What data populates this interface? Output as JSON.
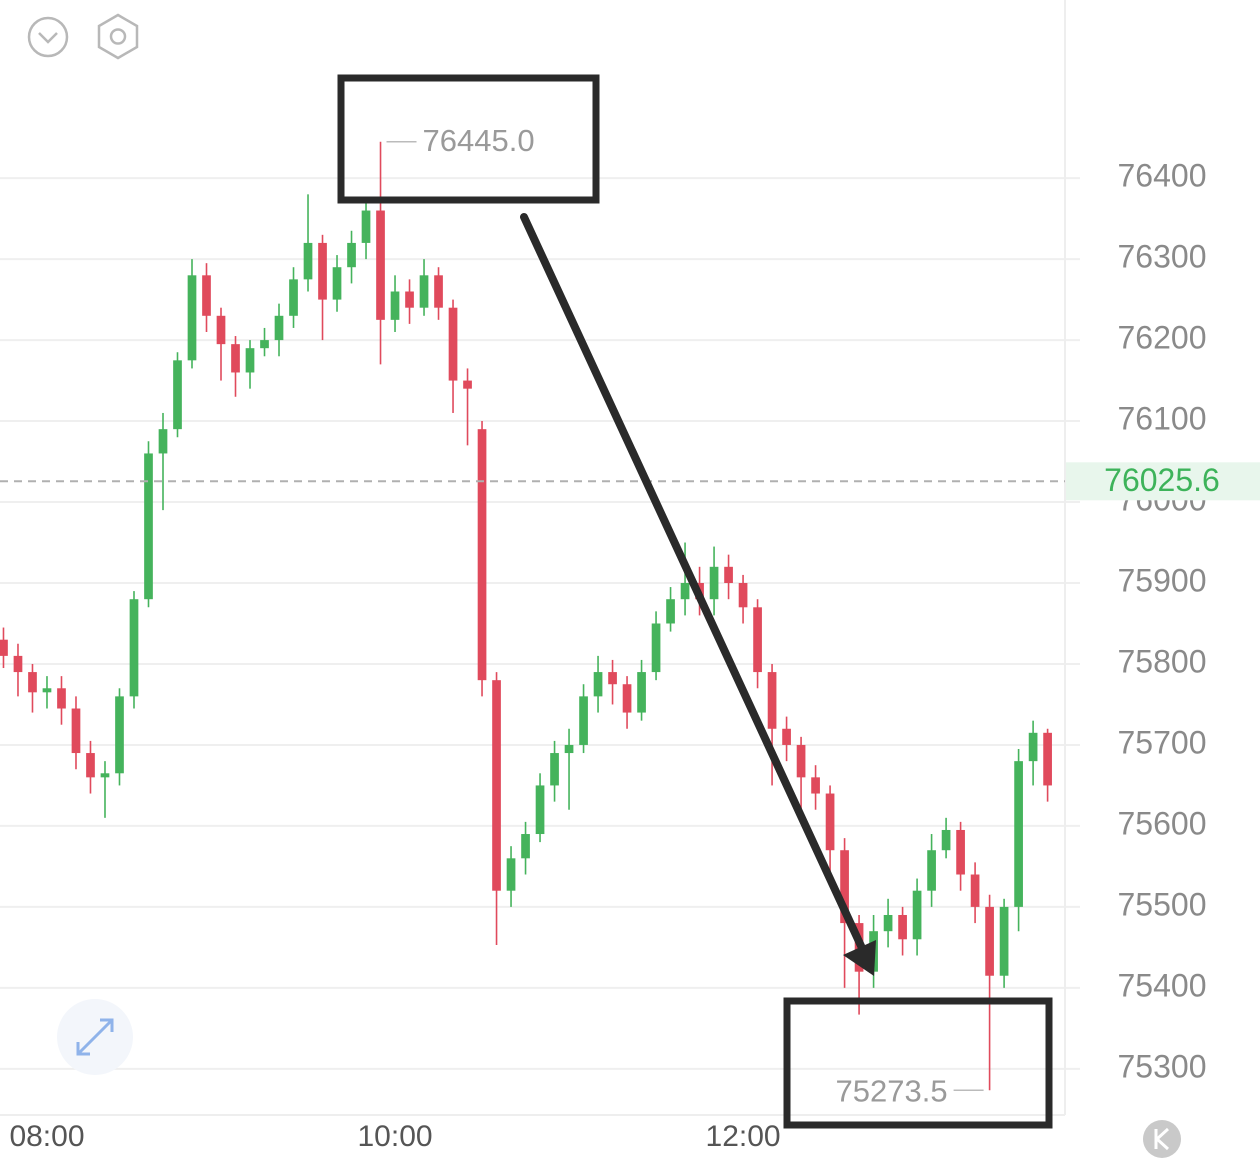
{
  "chart_data": {
    "type": "candlestick",
    "x": [
      465,
      470,
      475,
      480,
      485,
      490,
      495,
      500,
      505,
      510,
      515,
      520,
      525,
      530,
      535,
      540,
      545,
      550,
      555,
      560,
      565,
      570,
      575,
      580,
      585,
      590,
      595,
      600,
      605,
      610,
      615,
      620,
      625,
      630,
      635,
      640,
      645,
      650,
      655,
      660,
      665,
      670,
      675,
      680,
      685,
      690,
      695,
      700,
      705,
      710,
      715,
      720,
      725,
      730,
      735,
      740,
      745,
      750,
      755,
      760,
      765,
      770,
      775,
      780,
      785,
      790,
      795,
      800,
      805,
      810,
      815,
      820,
      825
    ],
    "open": [
      75830,
      75810,
      75790,
      75765,
      75770,
      75745,
      75690,
      75660,
      75665,
      75760,
      75880,
      76060,
      76090,
      76175,
      76280,
      76230,
      76195,
      76160,
      76190,
      76200,
      76230,
      76275,
      76320,
      76250,
      76290,
      76320,
      76360,
      76225,
      76260,
      76240,
      76280,
      76240,
      76150,
      76090,
      75780,
      75520,
      75560,
      75590,
      75650,
      75690,
      75700,
      75760,
      75790,
      75775,
      75740,
      75790,
      75850,
      75880,
      75900,
      75880,
      75920,
      75900,
      75870,
      75790,
      75720,
      75700,
      75660,
      75640,
      75570,
      75480,
      75420,
      75470,
      75490,
      75460,
      75520,
      75570,
      75595,
      75540,
      75500,
      75415,
      75500,
      75680,
      75715
    ],
    "high": [
      75845,
      75825,
      75800,
      75785,
      75785,
      75760,
      75705,
      75680,
      75770,
      75890,
      76075,
      76110,
      76185,
      76300,
      76295,
      76240,
      76205,
      76200,
      76215,
      76245,
      76290,
      76380,
      76330,
      76305,
      76335,
      76375,
      76445,
      76280,
      76275,
      76300,
      76290,
      76250,
      76165,
      76100,
      75790,
      75575,
      75605,
      75665,
      75705,
      75720,
      75775,
      75810,
      75805,
      75785,
      75805,
      75865,
      75895,
      75950,
      75920,
      75945,
      75935,
      75910,
      75880,
      75800,
      75735,
      75710,
      75675,
      75650,
      75585,
      75490,
      75490,
      75510,
      75500,
      75535,
      75590,
      75610,
      75605,
      75555,
      75515,
      75510,
      75695,
      75730,
      75720
    ],
    "low": [
      75795,
      75760,
      75740,
      75745,
      75725,
      75670,
      75640,
      75610,
      75650,
      75745,
      75870,
      75990,
      76080,
      76165,
      76210,
      76150,
      76130,
      76140,
      76180,
      76180,
      76215,
      76260,
      76200,
      76235,
      76270,
      76300,
      76170,
      76210,
      76220,
      76230,
      76225,
      76110,
      76070,
      75760,
      75453,
      75500,
      75540,
      75580,
      75630,
      75620,
      75690,
      75740,
      75750,
      75720,
      75730,
      75780,
      75840,
      75860,
      75860,
      75860,
      75880,
      75850,
      75770,
      75650,
      75680,
      75620,
      75620,
      75540,
      75400,
      75367,
      75400,
      75450,
      75440,
      75440,
      75500,
      75560,
      75520,
      75480,
      75273.5,
      75400,
      75470,
      75650,
      75630
    ],
    "close": [
      75810,
      75790,
      75765,
      75770,
      75745,
      75690,
      75660,
      75665,
      75760,
      75880,
      76060,
      76090,
      76175,
      76280,
      76230,
      76195,
      76160,
      76190,
      76200,
      76230,
      76275,
      76320,
      76250,
      76290,
      76320,
      76360,
      76225,
      76260,
      76240,
      76280,
      76240,
      76150,
      76140,
      75780,
      75520,
      75560,
      75590,
      75650,
      75690,
      75700,
      75760,
      75790,
      75775,
      75740,
      75790,
      75850,
      75880,
      75900,
      75880,
      75920,
      75900,
      75870,
      75790,
      75720,
      75700,
      75660,
      75640,
      75570,
      75480,
      75420,
      75470,
      75490,
      75460,
      75520,
      75570,
      75595,
      75540,
      75500,
      75415,
      75500,
      75680,
      75715,
      75650
    ],
    "up_color": "#45b35c",
    "down_color": "#e04a5c",
    "xlim": [
      463.8,
      831
    ],
    "xticks": [
      {
        "value": 480,
        "label": "08:00"
      },
      {
        "value": 600,
        "label": "10:00"
      },
      {
        "value": 720,
        "label": "12:00"
      }
    ],
    "ylim": [
      75243,
      76620
    ],
    "yticks": [
      75300,
      75400,
      75500,
      75600,
      75700,
      75800,
      75900,
      76000,
      76100,
      76200,
      76300,
      76400
    ],
    "grid": true,
    "last_price": 76025.6,
    "last_price_color": "#3db35a",
    "max_marker": {
      "value": 76445,
      "label": "76445.0"
    },
    "min_marker": {
      "value": 75273.5,
      "label": "75273.5"
    }
  }
}
